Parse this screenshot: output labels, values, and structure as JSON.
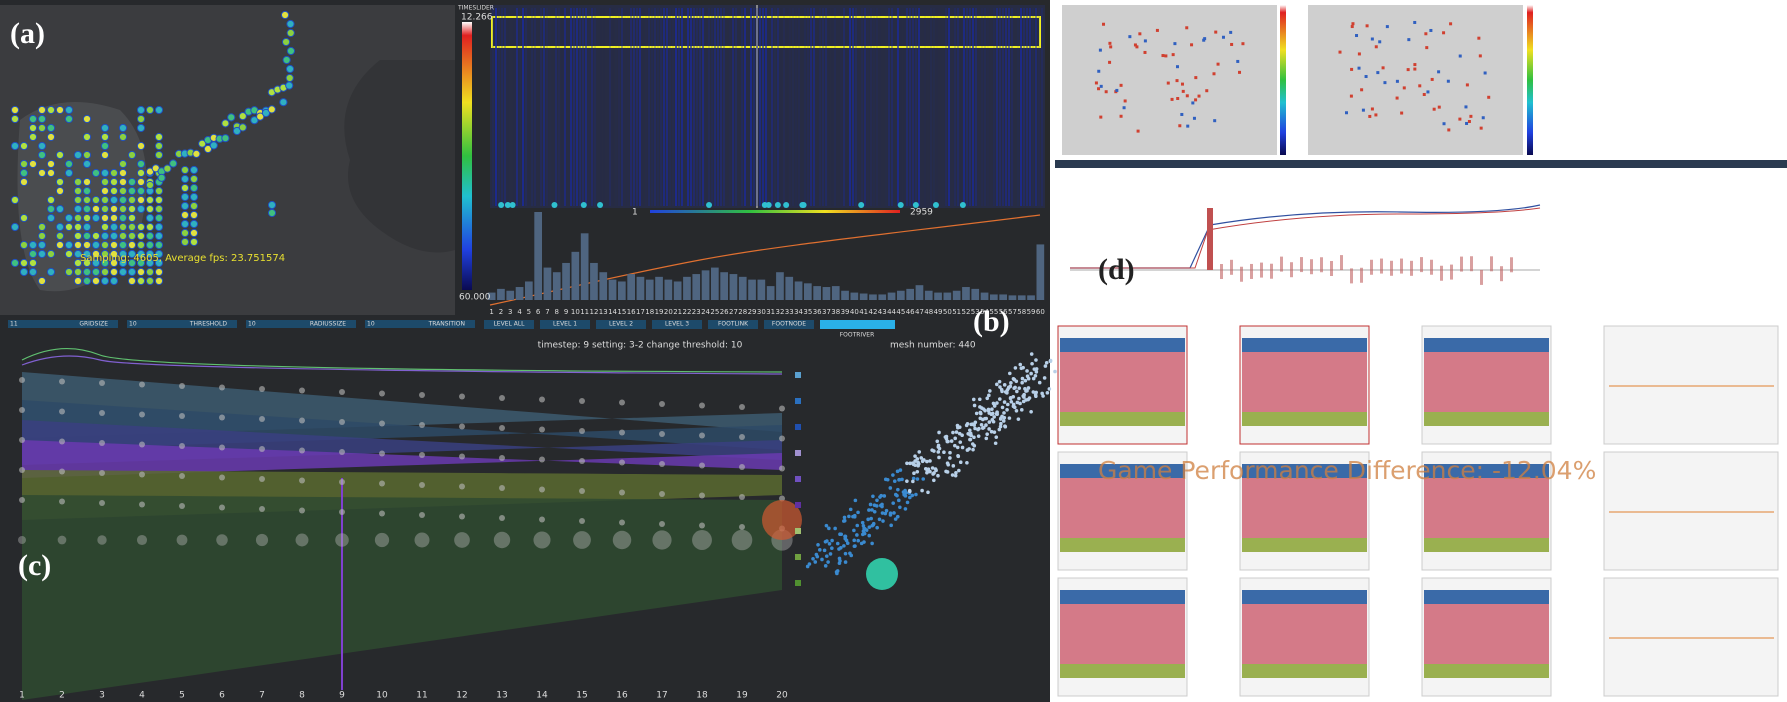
{
  "panel_labels": [
    "(a)",
    "(b)",
    "(c)",
    "(d)"
  ],
  "map": {
    "caption": "Sampling: 4605, Average fps: 23.751574"
  },
  "timeslider": {
    "title": "TIMESLIDER",
    "max_label": "12.266",
    "min_label": "60.000"
  },
  "heatmap": {
    "start": "1",
    "end": "2959"
  },
  "histogram": {
    "categories": [
      1,
      2,
      3,
      4,
      5,
      6,
      7,
      8,
      9,
      10,
      11,
      12,
      13,
      14,
      15,
      16,
      17,
      18,
      19,
      20,
      21,
      22,
      23,
      24,
      25,
      26,
      27,
      28,
      29,
      30,
      31,
      32,
      33,
      34,
      35,
      36,
      37,
      38,
      39,
      40,
      41,
      42,
      43,
      44,
      45,
      46,
      47,
      48,
      49,
      50,
      51,
      52,
      53,
      54,
      55,
      56,
      57,
      58,
      59,
      60
    ],
    "values": [
      8,
      12,
      10,
      14,
      20,
      95,
      35,
      30,
      40,
      52,
      72,
      40,
      30,
      22,
      20,
      28,
      25,
      22,
      25,
      22,
      20,
      25,
      28,
      32,
      35,
      30,
      28,
      25,
      22,
      22,
      15,
      30,
      25,
      20,
      18,
      15,
      14,
      15,
      10,
      8,
      7,
      6,
      6,
      8,
      10,
      12,
      16,
      10,
      8,
      8,
      10,
      14,
      12,
      8,
      6,
      6,
      5,
      5,
      5,
      60
    ]
  },
  "controls": {
    "sliders": [
      {
        "value": "11",
        "label": "GRIDSIZE"
      },
      {
        "value": "10",
        "label": "THRESHOLD"
      },
      {
        "value": "10",
        "label": "RADIUSSIZE"
      },
      {
        "value": "10",
        "label": "TRANSITION"
      }
    ],
    "buttons": [
      "LEVEL ALL",
      "LEVEL 1",
      "LEVEL 2",
      "LEVEL 3",
      "FOOTLINK",
      "FOOTNODE",
      "FOOTRIVER"
    ]
  },
  "status": {
    "setting": "timestep: 9 setting: 3-2 change threshold: 10",
    "mesh": "mesh number: 440"
  },
  "flow": {
    "categories": [
      1,
      2,
      3,
      4,
      5,
      6,
      7,
      8,
      9,
      10,
      11,
      12,
      13,
      14,
      15,
      16,
      17,
      18,
      19,
      20
    ]
  },
  "comparison": {
    "overlay": "Game Performance Difference: -12.04%"
  }
}
